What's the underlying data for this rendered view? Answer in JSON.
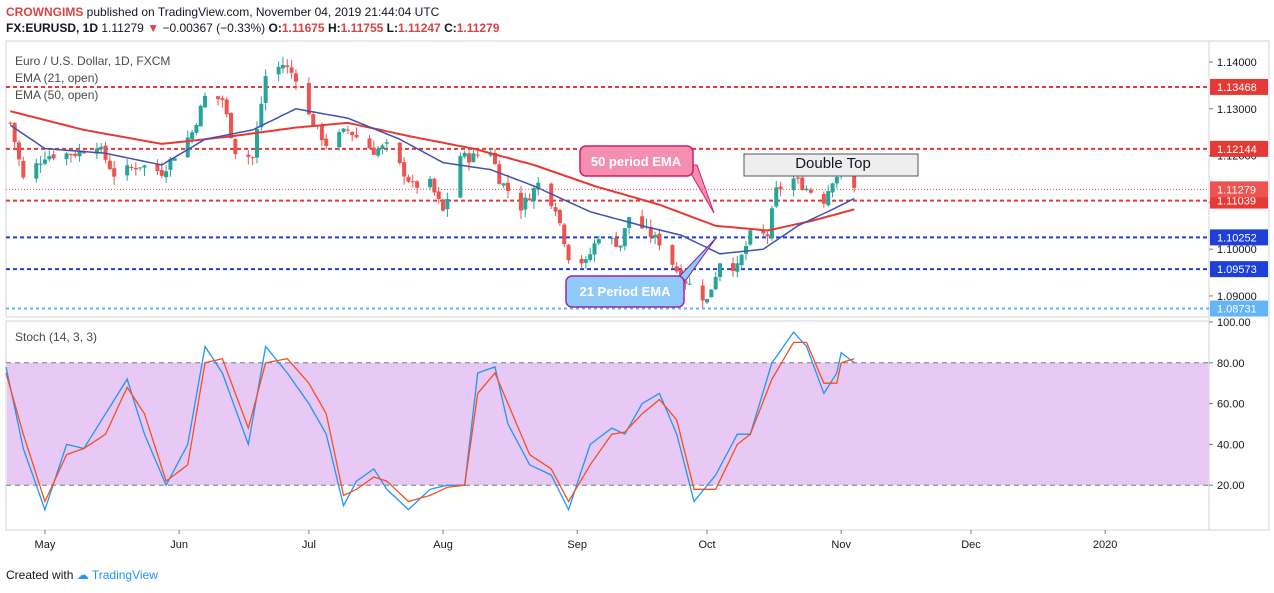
{
  "header": {
    "publisher": "CROWNGIMS",
    "published_text": "published on TradingView.com, November 04, 2019 21:44:04 UTC",
    "symbol": "FX:EURUSD, 1D",
    "last": "1.11279",
    "change": "−0.00367 (−0.33%)",
    "o_label": "O:",
    "o": "1.11675",
    "h_label": "H:",
    "h": "1.11755",
    "l_label": "L:",
    "l": "1.11247",
    "c_label": "C:",
    "c": "1.11279"
  },
  "legend": {
    "title": "Euro / U.S. Dollar, 1D, FXCM",
    "ema21": "EMA (21, open)",
    "ema50": "EMA (50, open)",
    "stoch": "Stoch (14, 3, 3)"
  },
  "annotations": {
    "double_top": "Double Top",
    "ema50_callout": "50 period EMA",
    "ema21_callout": "21 Period EMA"
  },
  "footer": {
    "created_with": "Created with",
    "brand": "TradingView"
  },
  "colors": {
    "up": "#26a69a",
    "down": "#ef5350",
    "ema21": "#3f51b5",
    "ema50": "#e53935",
    "resistance": "#e53935",
    "support": "#1e40d8",
    "stoch_k": "#2196f3",
    "stoch_d": "#f4511e",
    "stoch_band": "#e8c8f5",
    "callout_pink": "#f48fb1",
    "callout_blue": "#90caf9"
  },
  "chart_data": [
    {
      "type": "candlestick",
      "title": "Euro / U.S. Dollar, 1D, FXCM",
      "x_axis": {
        "ticks": [
          "May",
          "Jun",
          "Jul",
          "Aug",
          "Sep",
          "Oct",
          "Nov",
          "Dec",
          "2020"
        ],
        "range": [
          "2019-04-22",
          "2020-01-25"
        ]
      },
      "y_axis": {
        "ticks": [
          "1.09000",
          "1.10000",
          "1.11000",
          "1.12000",
          "1.13000",
          "1.14000"
        ],
        "range": [
          1.0855,
          1.1445
        ]
      },
      "current_price": "1.11279",
      "horizontal_levels": [
        {
          "value": 1.13468,
          "label": "1.13468",
          "kind": "resistance"
        },
        {
          "value": 1.12144,
          "label": "1.12144",
          "kind": "resistance"
        },
        {
          "value": 1.11039,
          "label": "1.11039",
          "kind": "resistance"
        },
        {
          "value": 1.10252,
          "label": "1.10252",
          "kind": "support"
        },
        {
          "value": 1.09573,
          "label": "1.09573",
          "kind": "support"
        },
        {
          "value": 1.08731,
          "label": "1.08731",
          "kind": "support"
        }
      ],
      "anchors": [
        [
          "2019-04-23",
          1.127
        ],
        [
          "2019-04-26",
          1.115
        ],
        [
          "2019-05-01",
          1.12
        ],
        [
          "2019-05-08",
          1.1205
        ],
        [
          "2019-05-13",
          1.1225
        ],
        [
          "2019-05-17",
          1.116
        ],
        [
          "2019-05-23",
          1.118
        ],
        [
          "2019-05-28",
          1.1165
        ],
        [
          "2019-06-04",
          1.125
        ],
        [
          "2019-06-07",
          1.1325
        ],
        [
          "2019-06-11",
          1.132
        ],
        [
          "2019-06-14",
          1.121
        ],
        [
          "2019-06-18",
          1.1195
        ],
        [
          "2019-06-21",
          1.137
        ],
        [
          "2019-06-25",
          1.1395
        ],
        [
          "2019-06-28",
          1.1368
        ],
        [
          "2019-07-01",
          1.1285
        ],
        [
          "2019-07-05",
          1.1225
        ],
        [
          "2019-07-10",
          1.1255
        ],
        [
          "2019-07-16",
          1.121
        ],
        [
          "2019-07-19",
          1.122
        ],
        [
          "2019-07-25",
          1.1135
        ],
        [
          "2019-07-29",
          1.114
        ],
        [
          "2019-08-01",
          1.108
        ],
        [
          "2019-08-05",
          1.12
        ],
        [
          "2019-08-07",
          1.1195
        ],
        [
          "2019-08-12",
          1.121
        ],
        [
          "2019-08-14",
          1.115
        ],
        [
          "2019-08-19",
          1.109
        ],
        [
          "2019-08-23",
          1.114
        ],
        [
          "2019-08-27",
          1.109
        ],
        [
          "2019-08-30",
          1.0985
        ],
        [
          "2019-09-03",
          1.097
        ],
        [
          "2019-09-06",
          1.103
        ],
        [
          "2019-09-11",
          1.101
        ],
        [
          "2019-09-13",
          1.107
        ],
        [
          "2019-09-18",
          1.103
        ],
        [
          "2019-09-20",
          1.1015
        ],
        [
          "2019-09-25",
          1.094
        ],
        [
          "2019-10-01",
          1.089
        ],
        [
          "2019-10-04",
          1.0975
        ],
        [
          "2019-10-08",
          1.096
        ],
        [
          "2019-10-11",
          1.103
        ],
        [
          "2019-10-15",
          1.103
        ],
        [
          "2019-10-17",
          1.1125
        ],
        [
          "2019-10-21",
          1.115
        ],
        [
          "2019-10-24",
          1.113
        ],
        [
          "2019-10-28",
          1.1105
        ],
        [
          "2019-10-30",
          1.115
        ],
        [
          "2019-11-01",
          1.1166
        ],
        [
          "2019-11-04",
          1.1128
        ]
      ],
      "ema21_anchors": [
        [
          "2019-04-23",
          1.1265
        ],
        [
          "2019-05-01",
          1.1215
        ],
        [
          "2019-05-15",
          1.1205
        ],
        [
          "2019-05-28",
          1.118
        ],
        [
          "2019-06-07",
          1.1235
        ],
        [
          "2019-06-18",
          1.1255
        ],
        [
          "2019-06-28",
          1.13
        ],
        [
          "2019-07-10",
          1.128
        ],
        [
          "2019-07-22",
          1.1235
        ],
        [
          "2019-08-01",
          1.1185
        ],
        [
          "2019-08-12",
          1.117
        ],
        [
          "2019-08-22",
          1.1135
        ],
        [
          "2019-09-04",
          1.108
        ],
        [
          "2019-09-16",
          1.105
        ],
        [
          "2019-09-25",
          1.103
        ],
        [
          "2019-10-04",
          1.099
        ],
        [
          "2019-10-14",
          1.1
        ],
        [
          "2019-10-22",
          1.105
        ],
        [
          "2019-10-30",
          1.1085
        ],
        [
          "2019-11-04",
          1.1108
        ]
      ],
      "ema50_anchors": [
        [
          "2019-04-23",
          1.1295
        ],
        [
          "2019-05-10",
          1.1255
        ],
        [
          "2019-05-28",
          1.1225
        ],
        [
          "2019-06-12",
          1.124
        ],
        [
          "2019-06-28",
          1.126
        ],
        [
          "2019-07-10",
          1.127
        ],
        [
          "2019-07-25",
          1.124
        ],
        [
          "2019-08-08",
          1.1215
        ],
        [
          "2019-08-22",
          1.118
        ],
        [
          "2019-09-05",
          1.1135
        ],
        [
          "2019-09-20",
          1.1095
        ],
        [
          "2019-10-03",
          1.105
        ],
        [
          "2019-10-15",
          1.104
        ],
        [
          "2019-10-25",
          1.106
        ],
        [
          "2019-11-04",
          1.1085
        ]
      ]
    },
    {
      "type": "line",
      "title": "Stoch (14, 3, 3)",
      "y_axis": {
        "ticks": [
          "20.00",
          "40.00",
          "60.00",
          "80.00",
          "100.00"
        ],
        "range": [
          0,
          100
        ]
      },
      "band": [
        20,
        80
      ],
      "series": [
        {
          "key": "k",
          "values": [
            [
              "2019-04-22",
              78
            ],
            [
              "2019-04-26",
              38
            ],
            [
              "2019-05-01",
              8
            ],
            [
              "2019-05-06",
              40
            ],
            [
              "2019-05-10",
              38
            ],
            [
              "2019-05-15",
              55
            ],
            [
              "2019-05-20",
              72
            ],
            [
              "2019-05-24",
              45
            ],
            [
              "2019-05-29",
              20
            ],
            [
              "2019-06-03",
              40
            ],
            [
              "2019-06-07",
              88
            ],
            [
              "2019-06-11",
              75
            ],
            [
              "2019-06-17",
              40
            ],
            [
              "2019-06-21",
              88
            ],
            [
              "2019-06-26",
              75
            ],
            [
              "2019-07-01",
              60
            ],
            [
              "2019-07-05",
              45
            ],
            [
              "2019-07-09",
              10
            ],
            [
              "2019-07-12",
              22
            ],
            [
              "2019-07-16",
              28
            ],
            [
              "2019-07-19",
              18
            ],
            [
              "2019-07-24",
              8
            ],
            [
              "2019-07-29",
              18
            ],
            [
              "2019-08-02",
              20
            ],
            [
              "2019-08-06",
              20
            ],
            [
              "2019-08-09",
              75
            ],
            [
              "2019-08-13",
              78
            ],
            [
              "2019-08-16",
              50
            ],
            [
              "2019-08-21",
              30
            ],
            [
              "2019-08-26",
              25
            ],
            [
              "2019-08-30",
              8
            ],
            [
              "2019-09-04",
              40
            ],
            [
              "2019-09-09",
              48
            ],
            [
              "2019-09-12",
              45
            ],
            [
              "2019-09-16",
              60
            ],
            [
              "2019-09-20",
              65
            ],
            [
              "2019-09-24",
              45
            ],
            [
              "2019-09-28",
              12
            ],
            [
              "2019-10-03",
              25
            ],
            [
              "2019-10-08",
              45
            ],
            [
              "2019-10-11",
              45
            ],
            [
              "2019-10-16",
              80
            ],
            [
              "2019-10-21",
              95
            ],
            [
              "2019-10-24",
              88
            ],
            [
              "2019-10-28",
              65
            ],
            [
              "2019-10-31",
              75
            ],
            [
              "2019-11-01",
              85
            ],
            [
              "2019-11-04",
              80
            ]
          ]
        },
        {
          "key": "d",
          "values": [
            [
              "2019-04-22",
              75
            ],
            [
              "2019-04-26",
              45
            ],
            [
              "2019-05-01",
              12
            ],
            [
              "2019-05-06",
              35
            ],
            [
              "2019-05-10",
              38
            ],
            [
              "2019-05-15",
              45
            ],
            [
              "2019-05-20",
              68
            ],
            [
              "2019-05-24",
              55
            ],
            [
              "2019-05-29",
              22
            ],
            [
              "2019-06-03",
              30
            ],
            [
              "2019-06-07",
              80
            ],
            [
              "2019-06-11",
              82
            ],
            [
              "2019-06-17",
              48
            ],
            [
              "2019-06-21",
              80
            ],
            [
              "2019-06-26",
              82
            ],
            [
              "2019-07-01",
              70
            ],
            [
              "2019-07-05",
              55
            ],
            [
              "2019-07-09",
              15
            ],
            [
              "2019-07-12",
              18
            ],
            [
              "2019-07-16",
              24
            ],
            [
              "2019-07-19",
              22
            ],
            [
              "2019-07-24",
              12
            ],
            [
              "2019-07-29",
              15
            ],
            [
              "2019-08-02",
              19
            ],
            [
              "2019-08-06",
              20
            ],
            [
              "2019-08-09",
              65
            ],
            [
              "2019-08-13",
              75
            ],
            [
              "2019-08-16",
              60
            ],
            [
              "2019-08-21",
              35
            ],
            [
              "2019-08-26",
              28
            ],
            [
              "2019-08-30",
              12
            ],
            [
              "2019-09-04",
              30
            ],
            [
              "2019-09-09",
              45
            ],
            [
              "2019-09-12",
              46
            ],
            [
              "2019-09-16",
              55
            ],
            [
              "2019-09-20",
              62
            ],
            [
              "2019-09-24",
              52
            ],
            [
              "2019-09-28",
              18
            ],
            [
              "2019-10-03",
              18
            ],
            [
              "2019-10-08",
              40
            ],
            [
              "2019-10-11",
              45
            ],
            [
              "2019-10-16",
              72
            ],
            [
              "2019-10-21",
              90
            ],
            [
              "2019-10-24",
              90
            ],
            [
              "2019-10-28",
              70
            ],
            [
              "2019-10-31",
              70
            ],
            [
              "2019-11-01",
              80
            ],
            [
              "2019-11-04",
              82
            ]
          ]
        }
      ]
    }
  ]
}
